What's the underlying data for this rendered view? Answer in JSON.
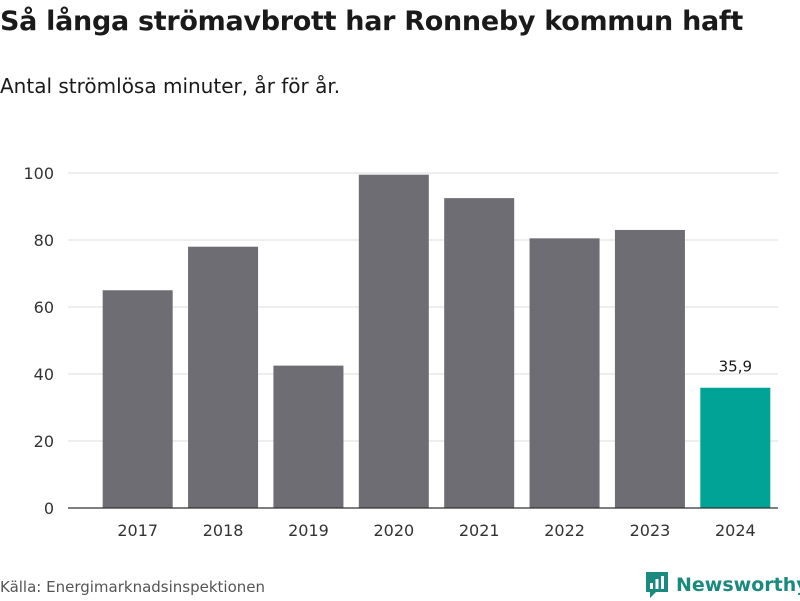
{
  "header": {
    "title": "Så långa strömavbrott har Ronneby kommun haft",
    "subtitle": "Antal strömlösa minuter, år för år."
  },
  "footer": {
    "source": "Källa: Energimarknadsinspektionen",
    "brand": "Newsworthy",
    "brand_icon": "newsworthy-logo-icon"
  },
  "colors": {
    "bar": "#6e6d73",
    "highlight": "#00a396",
    "grid": "#dddddd",
    "brand": "#1a8a7e"
  },
  "chart_data": {
    "type": "bar",
    "title": "Så långa strömavbrott har Ronneby kommun haft",
    "subtitle": "Antal strömlösa minuter, år för år.",
    "xlabel": "",
    "ylabel": "",
    "categories": [
      "2017",
      "2018",
      "2019",
      "2020",
      "2021",
      "2022",
      "2023",
      "2024"
    ],
    "values": [
      65,
      78,
      42.5,
      99.5,
      92.5,
      80.5,
      83,
      35.9
    ],
    "highlight_index": 7,
    "data_labels": [
      {
        "index": 7,
        "text": "35,9"
      }
    ],
    "ylim": [
      0,
      100
    ],
    "yticks": [
      0,
      20,
      40,
      60,
      80,
      100
    ],
    "grid": true
  }
}
